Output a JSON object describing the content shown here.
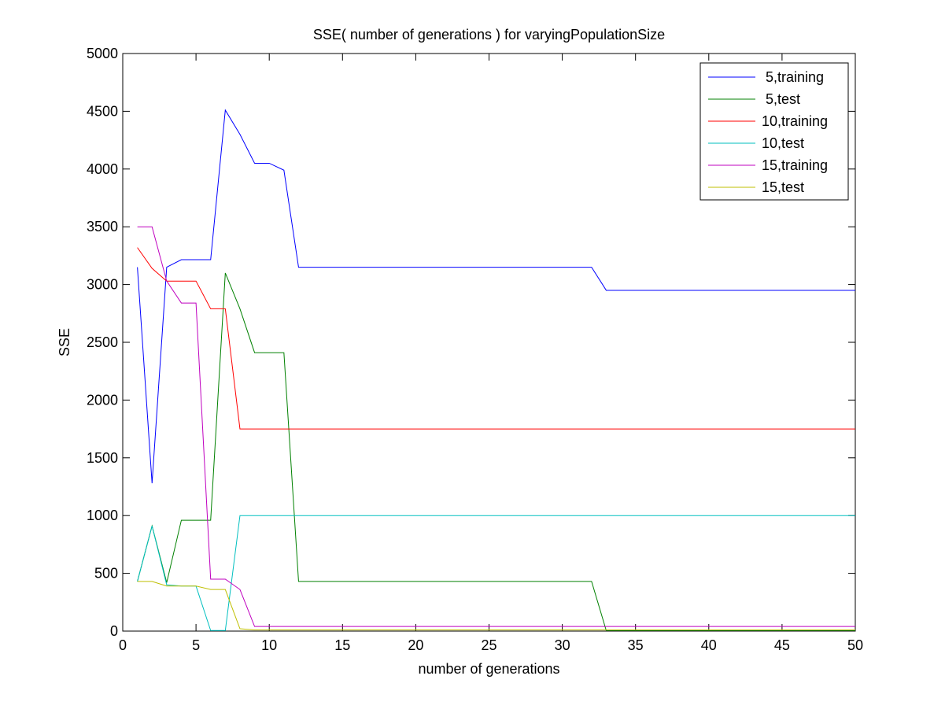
{
  "chart_data": {
    "type": "line",
    "title": "SSE( number of generations ) for varyingPopulationSize",
    "xlabel": "number of generations",
    "ylabel": "SSE",
    "xlim": [
      0,
      50
    ],
    "ylim": [
      0,
      5000
    ],
    "xticks": [
      0,
      5,
      10,
      15,
      20,
      25,
      30,
      35,
      40,
      45,
      50
    ],
    "yticks": [
      0,
      500,
      1000,
      1500,
      2000,
      2500,
      3000,
      3500,
      4000,
      4500,
      5000
    ],
    "grid": false,
    "legend_position": "top-right",
    "series": [
      {
        "name": " 5,training",
        "color": "#0000ff",
        "x": [
          1,
          2,
          3,
          4,
          5,
          6,
          7,
          8,
          9,
          10,
          11,
          12,
          32,
          33,
          50
        ],
        "y": [
          3150,
          1280,
          3150,
          3215,
          3215,
          3215,
          4510,
          4300,
          4050,
          4050,
          3990,
          3150,
          3150,
          2950,
          2950
        ]
      },
      {
        "name": " 5,test",
        "color": "#008000",
        "x": [
          1,
          2,
          3,
          4,
          5,
          6,
          7,
          8,
          9,
          10,
          11,
          12,
          32,
          33,
          50
        ],
        "y": [
          430,
          910,
          420,
          960,
          960,
          960,
          3100,
          2790,
          2410,
          2410,
          2410,
          430,
          430,
          5,
          5
        ]
      },
      {
        "name": "10,training",
        "color": "#ff0000",
        "x": [
          1,
          2,
          3,
          4,
          5,
          6,
          7,
          8,
          50
        ],
        "y": [
          3320,
          3140,
          3030,
          3030,
          3030,
          2790,
          2790,
          1750,
          1750
        ]
      },
      {
        "name": "10,test",
        "color": "#00bfbf",
        "x": [
          1,
          2,
          3,
          4,
          5,
          6,
          7,
          8,
          50
        ],
        "y": [
          430,
          910,
          400,
          390,
          390,
          5,
          5,
          1000,
          1000
        ]
      },
      {
        "name": "15,training",
        "color": "#bf00bf",
        "x": [
          1,
          2,
          3,
          4,
          5,
          6,
          7,
          8,
          9,
          50
        ],
        "y": [
          3500,
          3500,
          3030,
          2840,
          2840,
          450,
          450,
          360,
          40,
          40
        ]
      },
      {
        "name": "15,test",
        "color": "#bfbf00",
        "x": [
          1,
          2,
          3,
          4,
          5,
          6,
          7,
          8,
          9,
          50
        ],
        "y": [
          430,
          430,
          390,
          390,
          390,
          360,
          360,
          20,
          10,
          10
        ]
      }
    ]
  }
}
